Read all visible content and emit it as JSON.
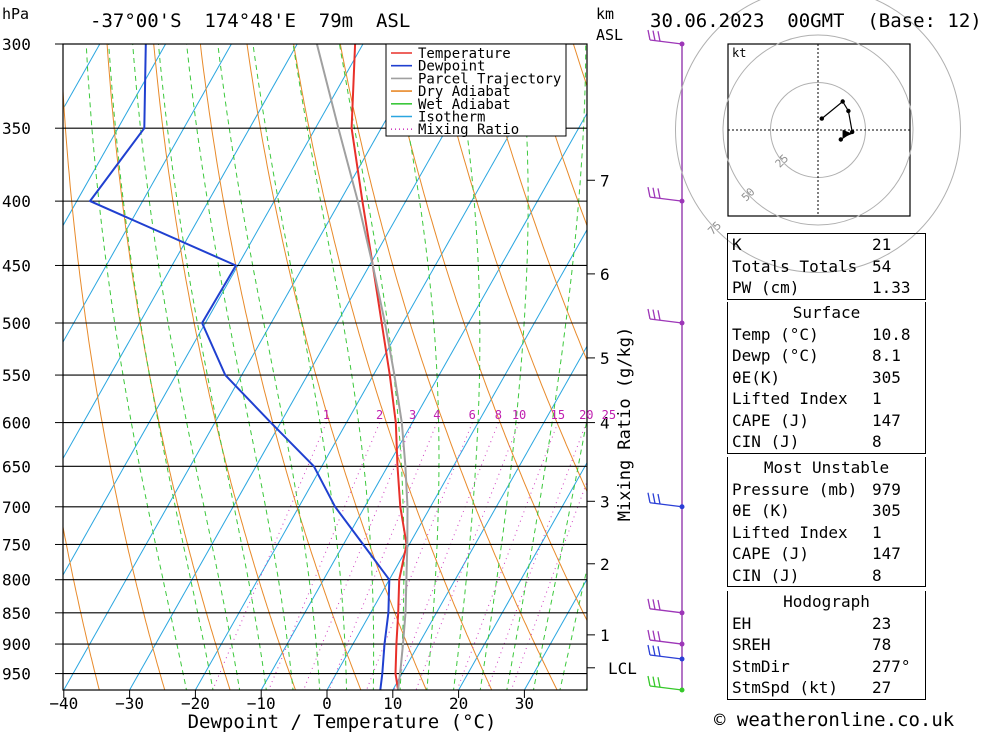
{
  "header": {
    "pressure_unit": "hPa",
    "location": "-37°00'S  174°48'E  79m  ASL",
    "km_label": "km",
    "asl_label": "ASL",
    "datetime": "30.06.2023  00GMT  (Base: 12)"
  },
  "chart_data": {
    "type": "line",
    "title": "-37°00'S 174°48'E 79m ASL",
    "xlabel": "Dewpoint / Temperature (°C)",
    "ylabel": "hPa",
    "right_axis_label": "Mixing Ratio (g/kg)",
    "x_ticks": [
      "−40",
      "−30",
      "−20",
      "−10",
      "0",
      "10",
      "20",
      "30"
    ],
    "x_tick_values": [
      -40,
      -30,
      -20,
      -10,
      0,
      10,
      20,
      30
    ],
    "pressure_levels": [
      300,
      350,
      400,
      450,
      500,
      550,
      600,
      650,
      700,
      750,
      800,
      850,
      900,
      950
    ],
    "pressure_labels": [
      "300",
      "350",
      "400",
      "450",
      "500",
      "550",
      "600",
      "650",
      "700",
      "750",
      "800",
      "850",
      "900",
      "950"
    ],
    "km_ticks": [
      {
        "km": 1,
        "label": "1"
      },
      {
        "km": 2,
        "label": "2"
      },
      {
        "km": 3,
        "label": "3"
      },
      {
        "km": 4,
        "label": "4"
      },
      {
        "km": 5,
        "label": "5"
      },
      {
        "km": 6,
        "label": "6"
      },
      {
        "km": 7,
        "label": "7"
      }
    ],
    "km_pressure": {
      "1": 885,
      "2": 777,
      "3": 693,
      "4": 600,
      "5": 533,
      "6": 457,
      "7": 385
    },
    "lcl_label": "LCL",
    "lcl_pressure": 940,
    "mixing_ratio_labels": [
      "1",
      "2",
      "3",
      "4",
      "6",
      "8",
      "10",
      "15",
      "20",
      "25"
    ],
    "mixing_ratio_values": [
      1,
      2,
      3,
      4,
      6,
      8,
      10,
      15,
      20,
      25
    ],
    "legend": [
      "Temperature",
      "Dewpoint",
      "Parcel Trajectory",
      "Dry Adiabat",
      "Wet Adiabat",
      "Isotherm",
      "Mixing Ratio"
    ],
    "series": [
      {
        "name": "Temperature",
        "color": "#e8302a",
        "points": [
          [
            979,
            10.8
          ],
          [
            950,
            9.0
          ],
          [
            900,
            6.6
          ],
          [
            850,
            4.2
          ],
          [
            800,
            1.5
          ],
          [
            750,
            -0.4
          ],
          [
            700,
            -4.6
          ],
          [
            650,
            -8.5
          ],
          [
            600,
            -12.5
          ],
          [
            550,
            -17.5
          ],
          [
            500,
            -23.2
          ],
          [
            450,
            -29.5
          ],
          [
            400,
            -36.6
          ],
          [
            350,
            -44.5
          ],
          [
            300,
            -51.2
          ]
        ]
      },
      {
        "name": "Dewpoint",
        "color": "#2040d0",
        "points": [
          [
            979,
            8.1
          ],
          [
            950,
            7.0
          ],
          [
            900,
            4.8
          ],
          [
            850,
            2.7
          ],
          [
            800,
            0.0
          ],
          [
            750,
            -7.0
          ],
          [
            700,
            -14.5
          ],
          [
            650,
            -21.2
          ],
          [
            600,
            -31.5
          ],
          [
            550,
            -42.5
          ],
          [
            500,
            -50.5
          ],
          [
            450,
            -50.3
          ],
          [
            400,
            -78.0
          ],
          [
            350,
            -76.0
          ],
          [
            300,
            -83.0
          ]
        ]
      },
      {
        "name": "Parcel Trajectory",
        "color": "#a0a0a0",
        "points": [
          [
            979,
            10.8
          ],
          [
            940,
            9.3
          ],
          [
            900,
            7.6
          ],
          [
            850,
            5.3
          ],
          [
            800,
            2.6
          ],
          [
            750,
            -0.3
          ],
          [
            700,
            -3.5
          ],
          [
            650,
            -7.3
          ],
          [
            600,
            -11.6
          ],
          [
            550,
            -16.8
          ],
          [
            500,
            -22.7
          ],
          [
            450,
            -29.5
          ],
          [
            400,
            -37.3
          ],
          [
            350,
            -46.5
          ],
          [
            300,
            -57.0
          ]
        ]
      }
    ],
    "wind_barbs": [
      {
        "pressure": 300,
        "color": "#9d36b8"
      },
      {
        "pressure": 400,
        "color": "#9d36b8"
      },
      {
        "pressure": 500,
        "color": "#9d36b8"
      },
      {
        "pressure": 700,
        "color": "#2a3fd6"
      },
      {
        "pressure": 850,
        "color": "#9d36b8"
      },
      {
        "pressure": 900,
        "color": "#9d36b8"
      },
      {
        "pressure": 925,
        "color": "#2a3fd6"
      },
      {
        "pressure": 979,
        "color": "#36c82a"
      }
    ]
  },
  "hodograph": {
    "unit": "kt",
    "rings": [
      "25",
      "50",
      "75"
    ],
    "ring_values": [
      25,
      50,
      75
    ],
    "trace": [
      [
        2,
        6
      ],
      [
        13,
        15
      ],
      [
        16,
        10
      ],
      [
        18,
        -1
      ],
      [
        12,
        -5
      ]
    ],
    "storm_motion": {
      "dir_deg": 277,
      "speed_kt": 27
    }
  },
  "indices": [
    {
      "label": "K",
      "value": "21"
    },
    {
      "label": "Totals Totals",
      "value": "54"
    },
    {
      "label": "PW (cm)",
      "value": "1.33"
    }
  ],
  "surface": {
    "title": "Surface",
    "rows": [
      {
        "label": "Temp (°C)",
        "value": "10.8"
      },
      {
        "label": "Dewp (°C)",
        "value": "8.1"
      },
      {
        "label": "θE(K)",
        "value": "305"
      },
      {
        "label": "Lifted Index",
        "value": "1"
      },
      {
        "label": "CAPE (J)",
        "value": "147"
      },
      {
        "label": "CIN (J)",
        "value": "8"
      }
    ]
  },
  "most_unstable": {
    "title": "Most Unstable",
    "rows": [
      {
        "label": "Pressure (mb)",
        "value": "979"
      },
      {
        "label": "θE (K)",
        "value": "305"
      },
      {
        "label": "Lifted Index",
        "value": "1"
      },
      {
        "label": "CAPE (J)",
        "value": "147"
      },
      {
        "label": "CIN (J)",
        "value": "8"
      }
    ]
  },
  "hodograph_table": {
    "title": "Hodograph",
    "rows": [
      {
        "label": "EH",
        "value": "23"
      },
      {
        "label": "SREH",
        "value": "78"
      },
      {
        "label": "StmDir",
        "value": "277°"
      },
      {
        "label": "StmSpd (kt)",
        "value": "27"
      }
    ]
  },
  "credit": "© weatheronline.co.uk"
}
